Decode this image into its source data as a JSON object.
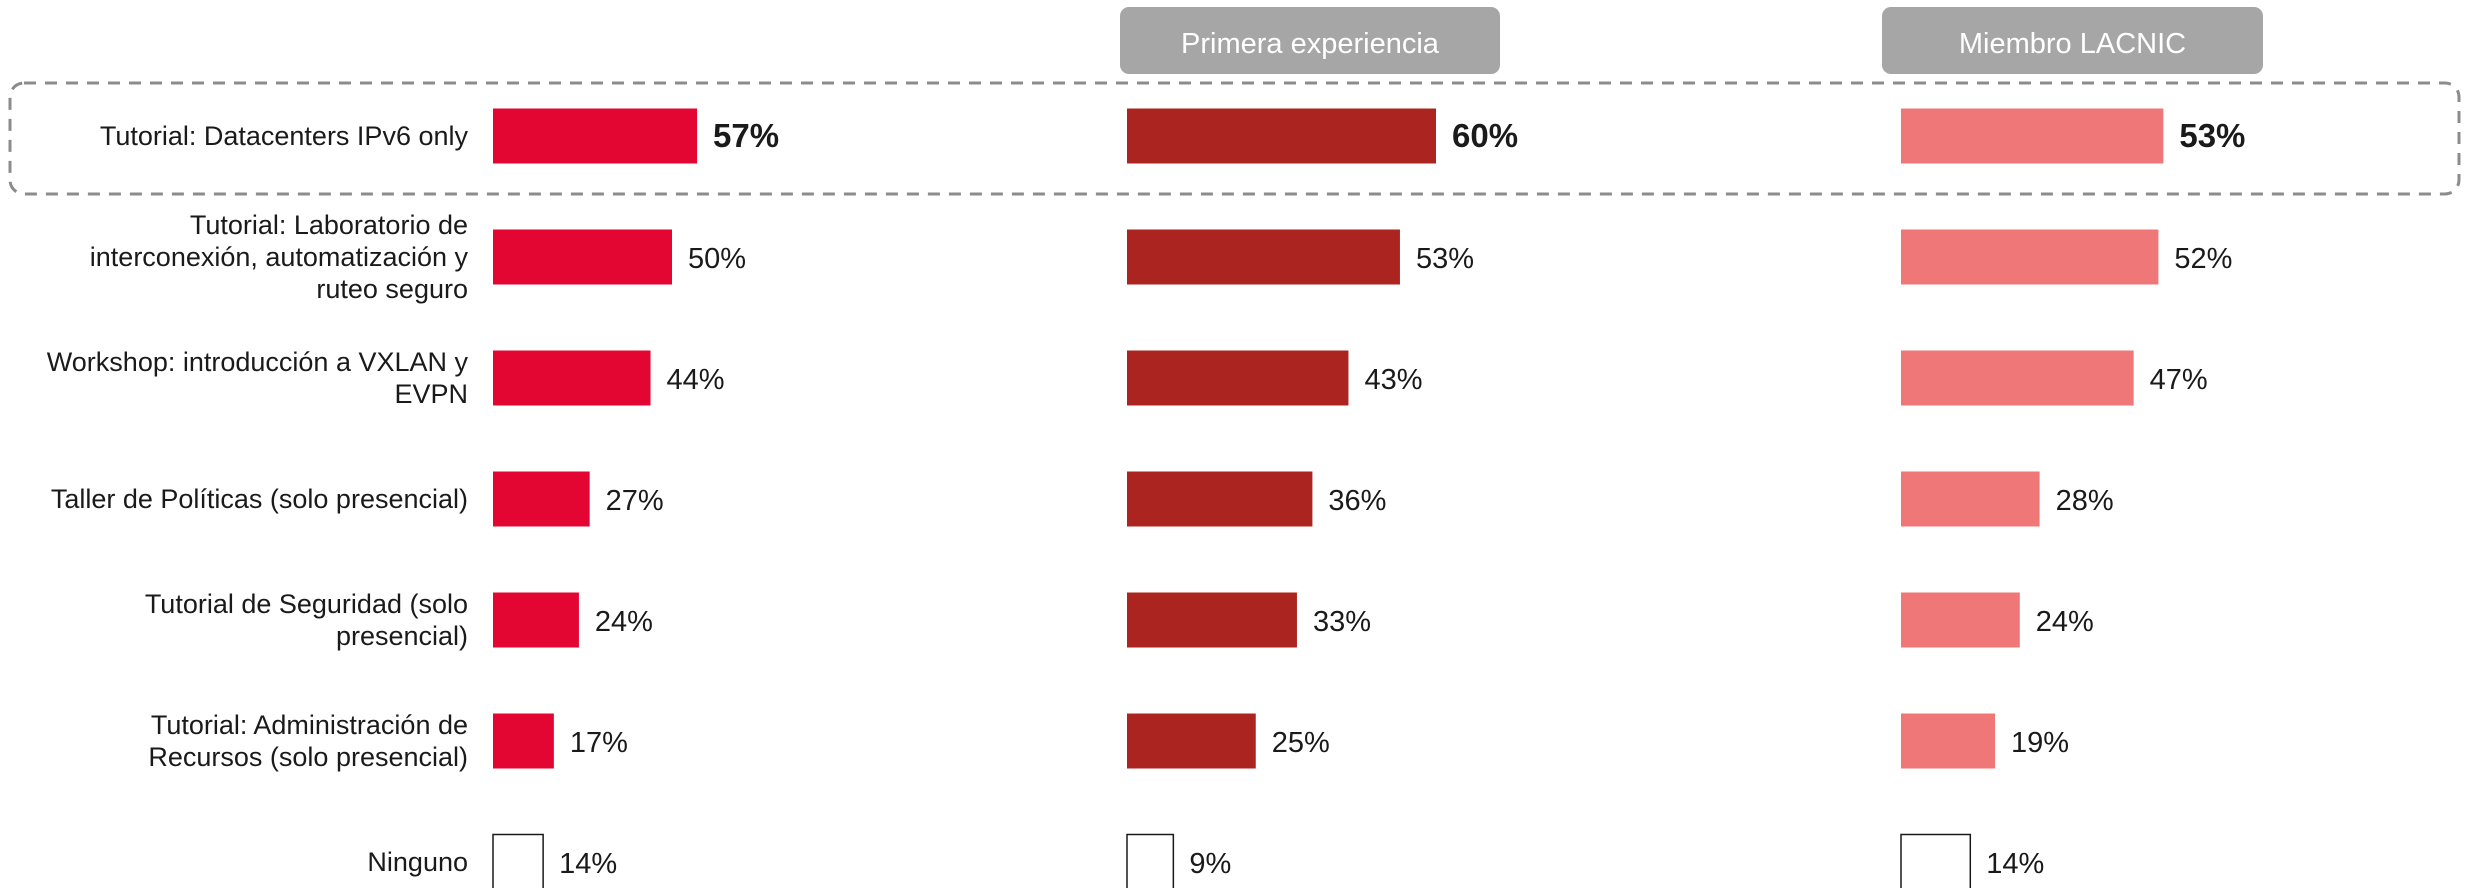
{
  "chart_data": {
    "type": "bar",
    "orientation": "horizontal",
    "categories": [
      "Tutorial: Datacenters IPv6 only",
      "Tutorial: Laboratorio de interconexión, automatización y ruteo seguro",
      "Workshop: introducción a VXLAN y EVPN",
      "Taller de Políticas (solo presencial)",
      "Tutorial de Seguridad (solo presencial)",
      "Tutorial: Administración de Recursos (solo presencial)",
      "Ninguno"
    ],
    "category_lines": [
      [
        "Tutorial: Datacenters IPv6 only"
      ],
      [
        "Tutorial: Laboratorio de",
        "interconexión, automatización y",
        "ruteo seguro"
      ],
      [
        "Workshop: introducción a VXLAN y",
        "EVPN"
      ],
      [
        "Taller de Políticas (solo presencial)"
      ],
      [
        "Tutorial de Seguridad (solo",
        "presencial)"
      ],
      [
        "Tutorial: Administración de",
        "Recursos (solo presencial)"
      ],
      [
        "Ninguno"
      ]
    ],
    "series": [
      {
        "name": "",
        "values": [
          57,
          50,
          44,
          27,
          24,
          17,
          14
        ],
        "labels": [
          "57%",
          "50%",
          "44%",
          "27%",
          "24%",
          "17%",
          "14%"
        ],
        "color": "#e30532"
      },
      {
        "name": "Primera experiencia",
        "values": [
          60,
          53,
          43,
          36,
          33,
          25,
          9
        ],
        "labels": [
          "60%",
          "53%",
          "43%",
          "36%",
          "33%",
          "25%",
          "9%"
        ],
        "color": "#ab241f"
      },
      {
        "name": "Miembro LACNIC",
        "values": [
          53,
          52,
          47,
          28,
          24,
          19,
          14
        ],
        "labels": [
          "53%",
          "52%",
          "47%",
          "28%",
          "24%",
          "19%",
          "14%"
        ],
        "color": "#ef7777"
      }
    ],
    "outlined_category": "Ninguno",
    "highlighted_category": "Tutorial: Datacenters IPv6 only",
    "header_color": "#a6a6a6",
    "highlight_border_color": "#8c8c8c",
    "value_unit": "%"
  }
}
